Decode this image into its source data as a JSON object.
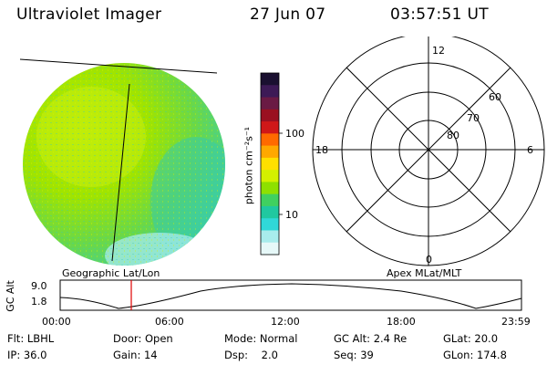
{
  "header": {
    "instrument": "Ultraviolet Imager",
    "date": "27 Jun 07",
    "time": "03:57:51 UT"
  },
  "colorbar": {
    "unit_label": "photon cm⁻²s⁻¹",
    "ticks": [
      "100",
      "10"
    ],
    "colors": [
      "#1a1030",
      "#3d1a56",
      "#6a1a44",
      "#9a1020",
      "#d01818",
      "#ff6a00",
      "#ffa800",
      "#ffe000",
      "#d4f000",
      "#8ee000",
      "#40d060",
      "#20c8a0",
      "#30d8d8",
      "#a8ecec",
      "#e6f8f8"
    ]
  },
  "polar_plot": {
    "mlt_labels": {
      "top": "12",
      "left": "18",
      "right": "6",
      "bottom": "0"
    },
    "lat_labels": [
      "60",
      "70",
      "80"
    ]
  },
  "panels": {
    "left_caption": "Geographic Lat/Lon",
    "right_caption": "Apex MLat/MLT"
  },
  "altitude_plot": {
    "ylabel": "GC Alt",
    "ytick_top": "9.0",
    "ytick_bottom": "1.8",
    "time_ticks": [
      "00:00",
      "06:00",
      "12:00",
      "18:00",
      "23:59"
    ],
    "current_time_color": "#e00000"
  },
  "info": {
    "filter": "Flt: LBHL",
    "door": "Door: Open",
    "mode": "Mode: Normal",
    "gc_alt": "GC Alt: 2.4 Re",
    "glat": "GLat:  20.0",
    "ip": "IP: 36.0",
    "gain": "Gain: 14",
    "dsp": "Dsp:    2.0",
    "seq": "Seq: 39",
    "glon": "GLon: 174.8"
  }
}
